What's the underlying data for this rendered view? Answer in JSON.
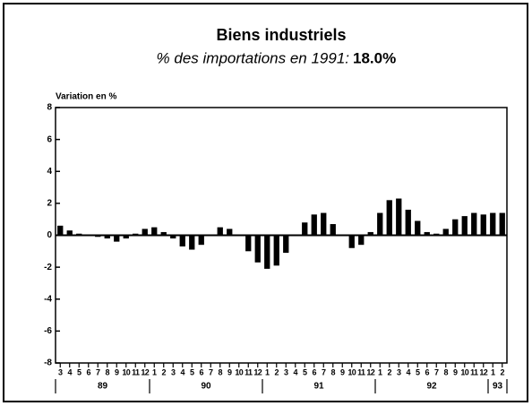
{
  "chart_data": {
    "type": "bar",
    "title": "Biens industriels",
    "subtitle": "% des importations en 1991:",
    "subtitle_value": "18.0%",
    "y_label": "Variation en %",
    "categories": [
      "3",
      "4",
      "5",
      "6",
      "7",
      "8",
      "9",
      "10",
      "11",
      "12",
      "1",
      "2",
      "3",
      "4",
      "5",
      "6",
      "7",
      "8",
      "9",
      "10",
      "11",
      "12",
      "1",
      "2",
      "3",
      "4",
      "5",
      "6",
      "7",
      "8",
      "9",
      "10",
      "11",
      "12",
      "1",
      "2",
      "3",
      "4",
      "5",
      "6",
      "7",
      "8",
      "9",
      "10",
      "11",
      "12",
      "1",
      "2"
    ],
    "x_groups": [
      "89",
      "90",
      "91",
      "92",
      "93"
    ],
    "values": [
      0.6,
      0.3,
      0.1,
      0.05,
      -0.1,
      -0.2,
      -0.4,
      -0.2,
      0.1,
      0.4,
      0.5,
      0.2,
      -0.2,
      -0.7,
      -0.9,
      -0.6,
      0.0,
      0.5,
      0.4,
      0.0,
      -1.0,
      -1.7,
      -2.1,
      -1.9,
      -1.1,
      0.0,
      0.8,
      1.3,
      1.4,
      0.7,
      0.0,
      -0.8,
      -0.6,
      0.2,
      1.4,
      2.2,
      2.3,
      1.6,
      0.9,
      0.2,
      0.1,
      0.4,
      1.0,
      1.2,
      1.4,
      1.3,
      1.4,
      1.4
    ],
    "color": "#000000",
    "ylim": [
      -8,
      8
    ],
    "yticks": [
      -8,
      -6,
      -4,
      -2,
      0,
      2,
      4,
      6,
      8
    ],
    "grid": false
  }
}
